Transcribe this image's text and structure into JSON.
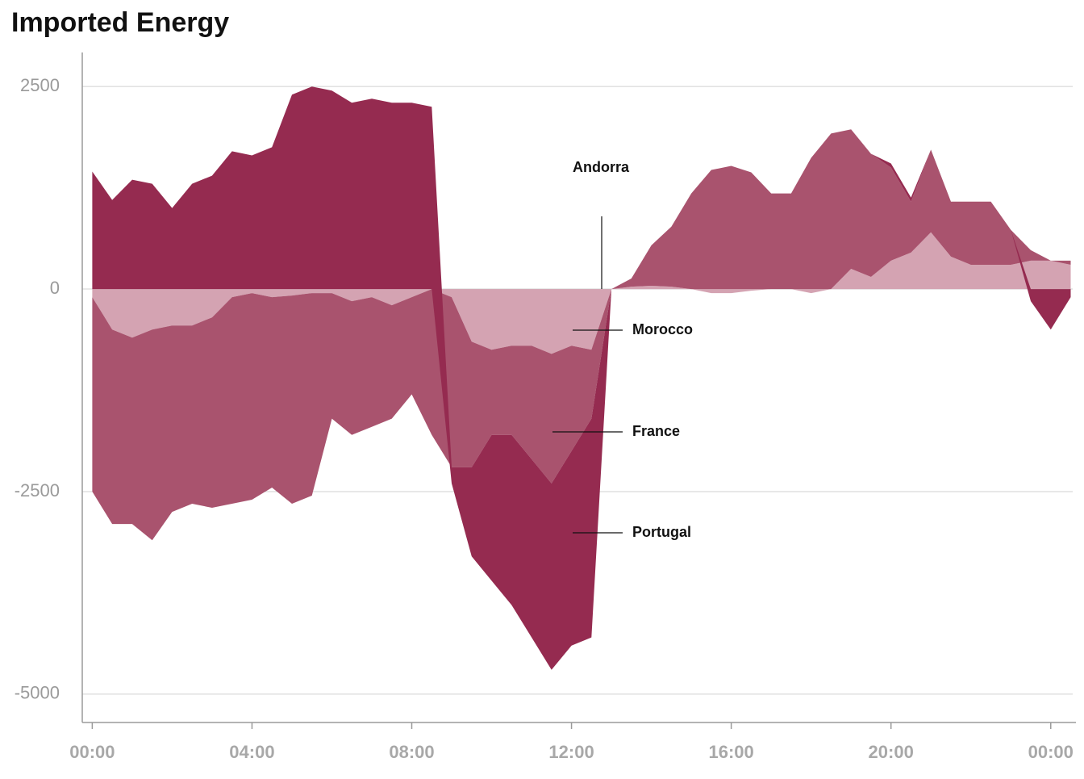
{
  "chart_data": {
    "type": "area",
    "title": "Imported Energy",
    "stacked": true,
    "x": [
      0,
      0.5,
      1,
      1.5,
      2,
      2.5,
      3,
      3.5,
      4,
      4.5,
      5,
      5.5,
      6,
      6.5,
      7,
      7.5,
      8,
      8.5,
      9,
      9.5,
      10,
      10.5,
      11,
      11.5,
      12,
      12.5,
      13,
      13.5,
      14,
      14.5,
      15,
      15.5,
      16,
      16.5,
      17,
      17.5,
      18,
      18.5,
      19,
      19.5,
      20,
      20.5,
      21,
      21.5,
      22,
      22.5,
      23,
      23.5,
      24,
      24.5
    ],
    "series": [
      {
        "name": "Andorra",
        "color": "#7d2143",
        "values": [
          0,
          0,
          0,
          0,
          0,
          0,
          0,
          0,
          0,
          0,
          0,
          0,
          0,
          0,
          0,
          0,
          0,
          0,
          0,
          0,
          0,
          0,
          0,
          0,
          0,
          0,
          0,
          0,
          0,
          0,
          0,
          0,
          0,
          0,
          0,
          0,
          0,
          0,
          0,
          0,
          0,
          0,
          0,
          0,
          0,
          0,
          0,
          0,
          0,
          0
        ]
      },
      {
        "name": "Morocco",
        "color": "#d4a3b2",
        "values": [
          -100,
          -500,
          -600,
          -500,
          -450,
          -450,
          -350,
          -100,
          -50,
          -100,
          -80,
          -50,
          -50,
          -150,
          -100,
          -200,
          -100,
          0,
          -100,
          -650,
          -750,
          -700,
          -700,
          -800,
          -700,
          -750,
          0,
          30,
          40,
          30,
          0,
          -50,
          -50,
          -20,
          0,
          0,
          -50,
          0,
          250,
          150,
          350,
          450,
          700,
          400,
          300,
          300,
          300,
          350,
          350,
          300
        ]
      },
      {
        "name": "France",
        "color": "#a9536e",
        "values": [
          -2400,
          -2400,
          -2300,
          -2600,
          -2300,
          -2200,
          -2350,
          -2550,
          -2550,
          -2350,
          -2570,
          -2500,
          -1550,
          -1650,
          -1600,
          -1400,
          -1200,
          -1800,
          -2100,
          -1550,
          -1050,
          -1100,
          -1400,
          -1600,
          -1300,
          -850,
          0,
          100,
          500,
          740,
          1180,
          1470,
          1520,
          1440,
          1180,
          1180,
          1620,
          1920,
          1720,
          1520,
          1150,
          630,
          1020,
          680,
          780,
          780,
          430,
          130,
          0,
          50
        ]
      },
      {
        "name": "Portugal",
        "color": "#952b50",
        "values": [
          1450,
          1100,
          1350,
          1300,
          1000,
          1300,
          1400,
          1700,
          1650,
          1750,
          2400,
          2500,
          2450,
          2300,
          2350,
          2300,
          2300,
          2250,
          -200,
          -1100,
          -1800,
          -2100,
          -2200,
          -2300,
          -2400,
          -2700,
          0,
          0,
          0,
          0,
          0,
          0,
          0,
          0,
          0,
          0,
          0,
          0,
          0,
          0,
          50,
          50,
          0,
          0,
          0,
          0,
          0,
          -150,
          -500,
          -100
        ]
      }
    ],
    "xlim": [
      -0.25,
      24.55
    ],
    "xticks": [
      {
        "value": 0,
        "label": "00:00"
      },
      {
        "value": 4,
        "label": "04:00"
      },
      {
        "value": 8,
        "label": "08:00"
      },
      {
        "value": 12,
        "label": "12:00"
      },
      {
        "value": 16,
        "label": "16:00"
      },
      {
        "value": 20,
        "label": "20:00"
      },
      {
        "value": 24,
        "label": "00:00"
      }
    ],
    "ylim": [
      -5330,
      2920
    ],
    "yticks": [
      2500,
      0,
      -2500,
      -5000
    ],
    "grid": true
  }
}
